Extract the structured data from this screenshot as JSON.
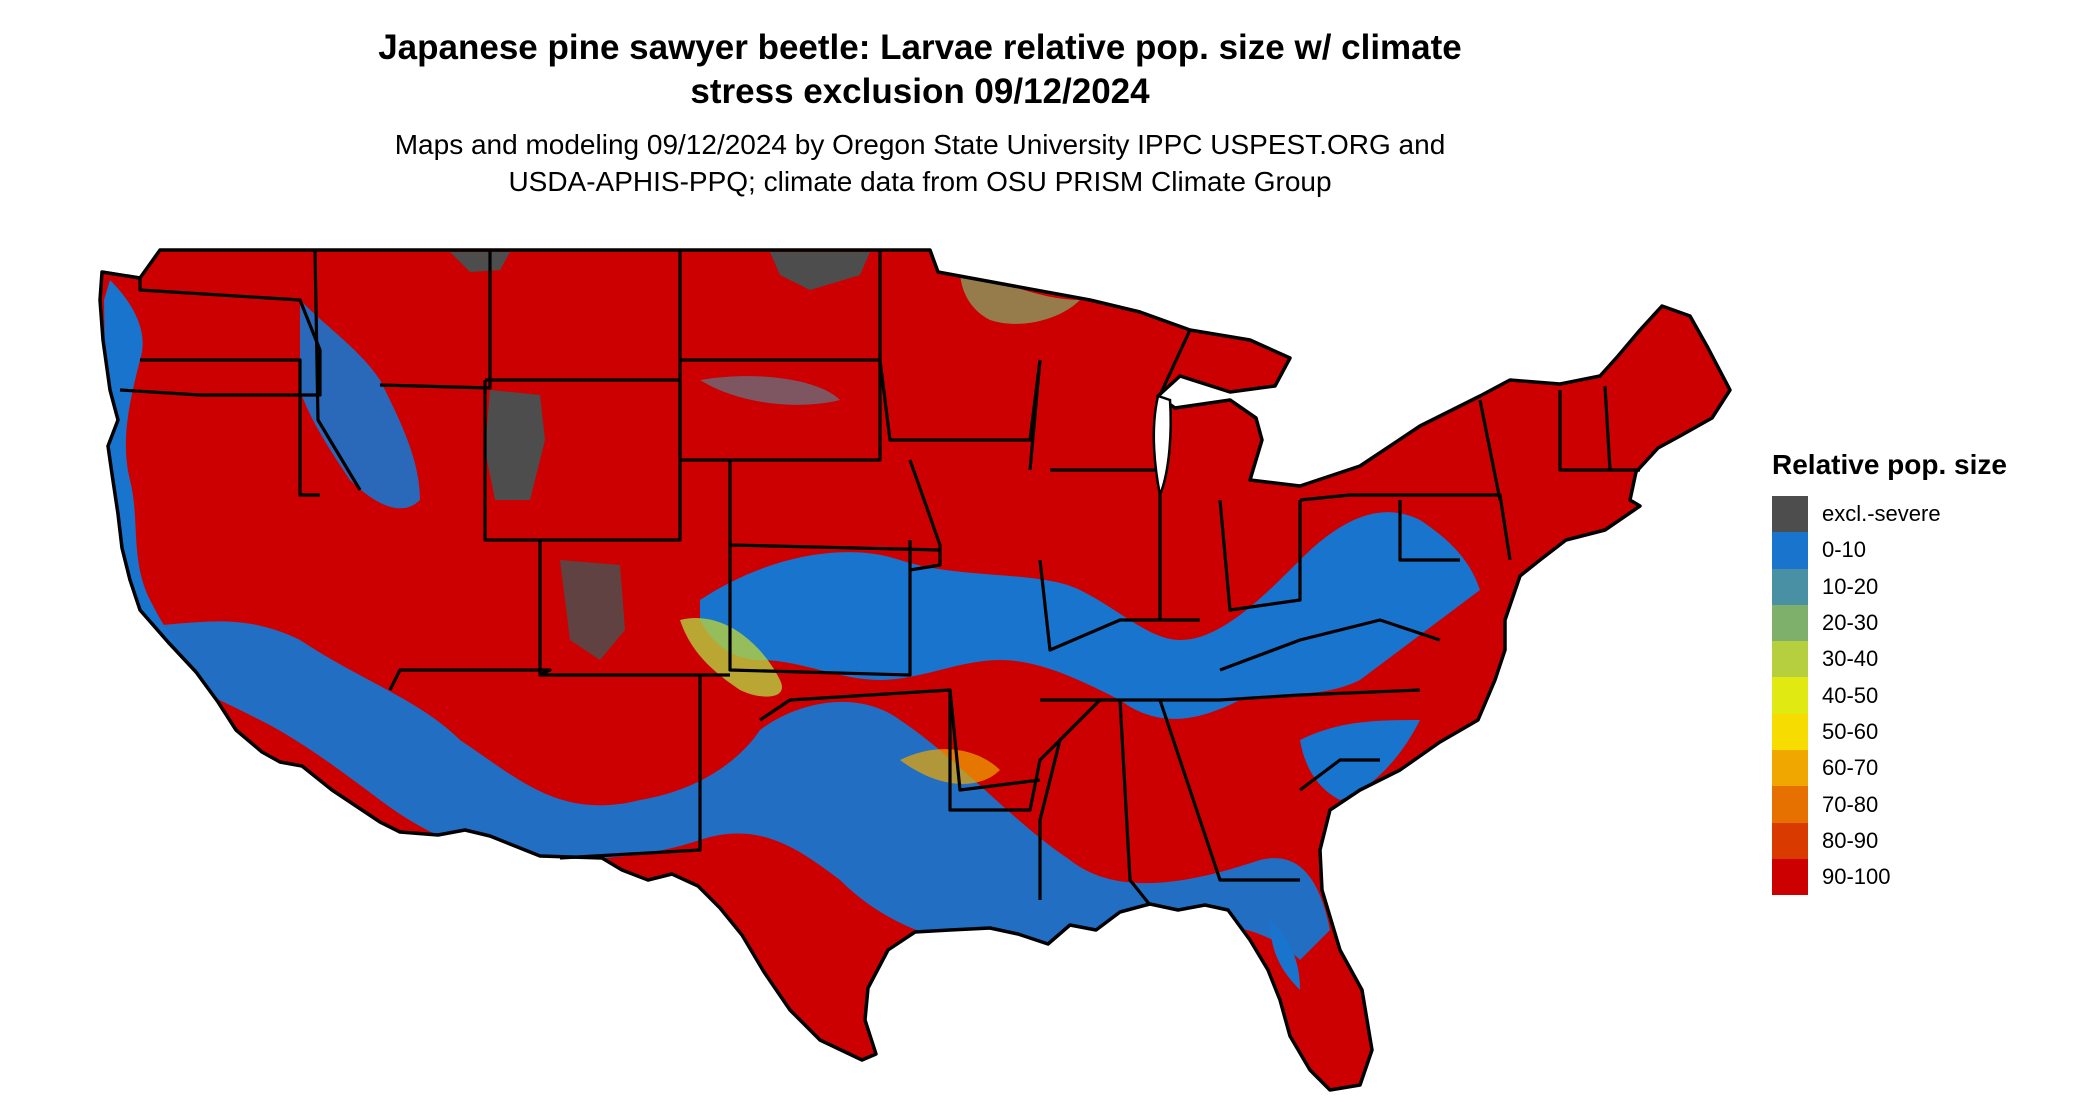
{
  "title_line1": "Japanese pine sawyer beetle: Larvae relative pop. size w/ climate",
  "title_line2": "stress exclusion 09/12/2024",
  "subtitle_line1": "Maps and modeling 09/12/2024 by Oregon State University IPPC USPEST.ORG and",
  "subtitle_line2": "USDA-APHIS-PPQ; climate data from OSU PRISM Climate Group",
  "legend": {
    "title": "Relative pop. size",
    "items": [
      {
        "label": "excl.-severe",
        "color": "#4d4d4d"
      },
      {
        "label": "0-10",
        "color": "#1874cd"
      },
      {
        "label": "10-20",
        "color": "#4a90a4"
      },
      {
        "label": "20-30",
        "color": "#7fb06b"
      },
      {
        "label": "30-40",
        "color": "#b5cf3e"
      },
      {
        "label": "40-50",
        "color": "#e0ea12"
      },
      {
        "label": "50-60",
        "color": "#f7dc00"
      },
      {
        "label": "60-70",
        "color": "#f0a800"
      },
      {
        "label": "70-80",
        "color": "#e67000"
      },
      {
        "label": "80-90",
        "color": "#d93a00"
      },
      {
        "label": "90-100",
        "color": "#cc0000"
      }
    ]
  }
}
